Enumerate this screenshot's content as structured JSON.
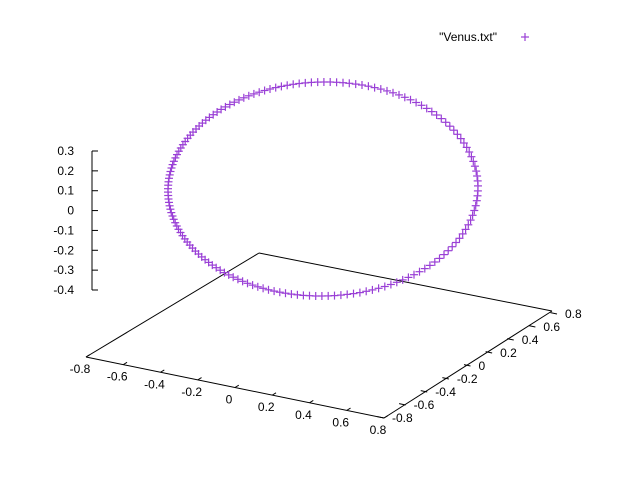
{
  "chart_data": {
    "type": "scatter",
    "view": "3d",
    "legend": {
      "label": "\"Venus.txt\"",
      "position": "top-right",
      "marker": "+"
    },
    "series": [
      {
        "name": "\"Venus.txt\"",
        "marker": "+",
        "color": "#9a40d6",
        "point_count": 160
      }
    ],
    "x_axis": {
      "range": [
        -0.8,
        0.8
      ],
      "ticks": [
        "-0.8",
        "-0.6",
        "-0.4",
        "-0.2",
        "0",
        "0.2",
        "0.4",
        "0.6",
        "0.8"
      ]
    },
    "y_axis": {
      "range": [
        -0.8,
        0.8
      ],
      "ticks": [
        "-0.8",
        "-0.6",
        "-0.4",
        "-0.2",
        "0",
        "0.2",
        "0.4",
        "0.6",
        "0.8"
      ]
    },
    "z_axis": {
      "range": [
        -0.4,
        0.3
      ],
      "ticks": [
        "0.3",
        "0.2",
        "0.1",
        "0",
        "-0.1",
        "-0.2",
        "-0.3",
        "-0.4"
      ]
    },
    "orbit": {
      "shape": "ellipse",
      "approx_x_extent": [
        -0.72,
        0.72
      ],
      "approx_y_extent": [
        -0.72,
        0.72
      ],
      "approx_z_extent": [
        -0.05,
        0.05
      ]
    },
    "grid": false
  }
}
